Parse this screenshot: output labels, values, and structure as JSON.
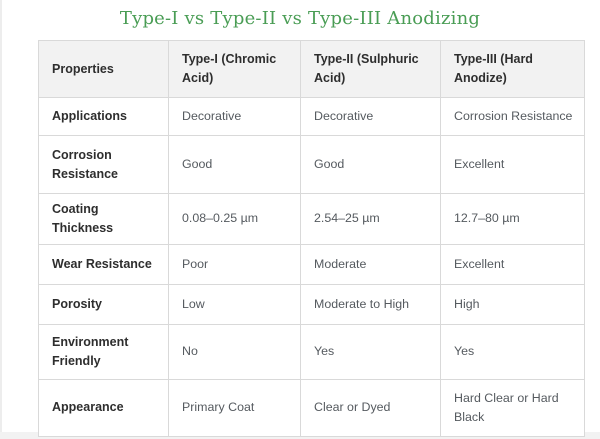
{
  "page": {
    "title": "Type-I vs Type-II vs Type-III Anodizing",
    "title_color": "#4a9d55"
  },
  "table": {
    "columns": [
      "Properties",
      "Type-I (Chromic Acid)",
      "Type-II (Sulphuric Acid)",
      "Type-III (Hard Anodize)"
    ],
    "rows": [
      {
        "property": "Applications",
        "values": [
          "Decorative",
          "Decorative",
          "Corrosion Resistance"
        ]
      },
      {
        "property": "Corrosion Resistance",
        "values": [
          "Good",
          "Good",
          "Excellent"
        ]
      },
      {
        "property": "Coating Thickness",
        "values": [
          "0.08–0.25 µm",
          "2.54–25 µm",
          "12.7–80 µm"
        ]
      },
      {
        "property": "Wear Resistance",
        "values": [
          "Poor",
          "Moderate",
          "Excellent"
        ]
      },
      {
        "property": "Porosity",
        "values": [
          "Low",
          "Moderate to High",
          "High"
        ]
      },
      {
        "property": "Environment Friendly",
        "values": [
          "No",
          "Yes",
          "Yes"
        ]
      },
      {
        "property": "Appearance",
        "values": [
          "Primary Coat",
          "Clear or Dyed",
          "Hard Clear or Hard Black"
        ]
      }
    ],
    "colors": {
      "header_bg": "#f2f2f2",
      "border": "#d9d9d9",
      "header_text": "#2e2e2e",
      "cell_text": "#555a5f"
    }
  }
}
